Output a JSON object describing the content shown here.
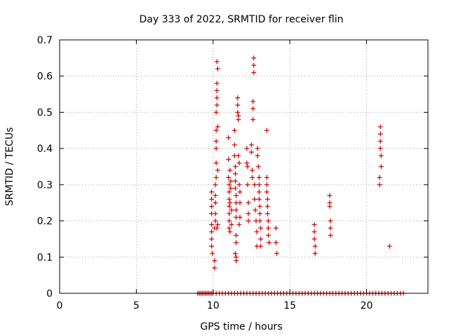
{
  "chart_data": {
    "type": "scatter",
    "title": "Day 333 of 2022, SRMTID for receiver flin",
    "xlabel": "GPS time / hours",
    "ylabel": "SRMTID / TECUs",
    "xlim": [
      0,
      24
    ],
    "ylim": [
      0,
      0.7
    ],
    "xticks": [
      "0",
      "5",
      "10",
      "15",
      "20"
    ],
    "xtick_values": [
      0,
      5,
      10,
      15,
      20
    ],
    "yticks": [
      "0",
      "0.1",
      "0.2",
      "0.3",
      "0.4",
      "0.5",
      "0.6",
      "0.7"
    ],
    "ytick_values": [
      0,
      0.1,
      0.2,
      0.3,
      0.4,
      0.5,
      0.6,
      0.7
    ],
    "grid": true,
    "marker": "+",
    "color": "#cc0000",
    "series": [
      {
        "name": "SRMTID",
        "points": [
          [
            9.9,
            0.28
          ],
          [
            9.9,
            0.26
          ],
          [
            9.9,
            0.24
          ],
          [
            9.9,
            0.22
          ],
          [
            9.9,
            0.19
          ],
          [
            9.9,
            0.17
          ],
          [
            9.9,
            0.15
          ],
          [
            9.9,
            0.13
          ],
          [
            9.95,
            0.11
          ],
          [
            10.1,
            0.07
          ],
          [
            10.1,
            0.09
          ],
          [
            10.1,
            0.18
          ],
          [
            10.15,
            0.2
          ],
          [
            10.15,
            0.22
          ],
          [
            10.15,
            0.25
          ],
          [
            10.15,
            0.27
          ],
          [
            10.15,
            0.3
          ],
          [
            10.2,
            0.32
          ],
          [
            10.2,
            0.36
          ],
          [
            10.2,
            0.4
          ],
          [
            10.2,
            0.42
          ],
          [
            10.2,
            0.45
          ],
          [
            10.2,
            0.5
          ],
          [
            10.25,
            0.52
          ],
          [
            10.25,
            0.54
          ],
          [
            10.25,
            0.56
          ],
          [
            10.25,
            0.58
          ],
          [
            10.25,
            0.64
          ],
          [
            10.3,
            0.62
          ],
          [
            10.3,
            0.46
          ],
          [
            10.3,
            0.34
          ],
          [
            10.3,
            0.19
          ],
          [
            10.25,
            0.18
          ],
          [
            11.0,
            0.43
          ],
          [
            11.0,
            0.37
          ],
          [
            11.0,
            0.32
          ],
          [
            11.05,
            0.3
          ],
          [
            11.05,
            0.28
          ],
          [
            11.05,
            0.26
          ],
          [
            11.05,
            0.24
          ],
          [
            11.05,
            0.22
          ],
          [
            11.05,
            0.2
          ],
          [
            11.05,
            0.18
          ],
          [
            11.1,
            0.17
          ],
          [
            11.1,
            0.34
          ],
          [
            11.1,
            0.25
          ],
          [
            11.15,
            0.29
          ],
          [
            11.15,
            0.31
          ],
          [
            11.2,
            0.23
          ],
          [
            11.2,
            0.19
          ],
          [
            11.4,
            0.45
          ],
          [
            11.4,
            0.41
          ],
          [
            11.4,
            0.38
          ],
          [
            11.45,
            0.35
          ],
          [
            11.45,
            0.33
          ],
          [
            11.45,
            0.31
          ],
          [
            11.45,
            0.29
          ],
          [
            11.5,
            0.27
          ],
          [
            11.5,
            0.25
          ],
          [
            11.5,
            0.23
          ],
          [
            11.5,
            0.21
          ],
          [
            11.5,
            0.16
          ],
          [
            11.5,
            0.14
          ],
          [
            11.45,
            0.11
          ],
          [
            11.5,
            0.1
          ],
          [
            11.5,
            0.09
          ],
          [
            11.6,
            0.54
          ],
          [
            11.6,
            0.52
          ],
          [
            11.6,
            0.5
          ],
          [
            11.65,
            0.49
          ],
          [
            11.65,
            0.48
          ],
          [
            11.65,
            0.38
          ],
          [
            11.7,
            0.36
          ],
          [
            11.7,
            0.3
          ],
          [
            11.75,
            0.28
          ],
          [
            11.75,
            0.25
          ],
          [
            11.75,
            0.21
          ],
          [
            11.7,
            0.19
          ],
          [
            12.2,
            0.4
          ],
          [
            12.2,
            0.36
          ],
          [
            12.25,
            0.35
          ],
          [
            12.25,
            0.3
          ],
          [
            12.3,
            0.25
          ],
          [
            12.3,
            0.22
          ],
          [
            12.3,
            0.2
          ],
          [
            12.5,
            0.41
          ],
          [
            12.5,
            0.39
          ],
          [
            12.55,
            0.34
          ],
          [
            12.55,
            0.32
          ],
          [
            12.6,
            0.53
          ],
          [
            12.6,
            0.51
          ],
          [
            12.6,
            0.48
          ],
          [
            12.65,
            0.61
          ],
          [
            12.65,
            0.63
          ],
          [
            12.65,
            0.65
          ],
          [
            12.7,
            0.3
          ],
          [
            12.7,
            0.26
          ],
          [
            12.75,
            0.23
          ],
          [
            12.8,
            0.2
          ],
          [
            12.85,
            0.17
          ],
          [
            12.85,
            0.13
          ],
          [
            12.9,
            0.4
          ],
          [
            12.9,
            0.38
          ],
          [
            12.95,
            0.35
          ],
          [
            13.0,
            0.32
          ],
          [
            13.0,
            0.3
          ],
          [
            13.0,
            0.28
          ],
          [
            13.0,
            0.26
          ],
          [
            13.05,
            0.24
          ],
          [
            13.05,
            0.22
          ],
          [
            13.05,
            0.2
          ],
          [
            13.1,
            0.18
          ],
          [
            13.1,
            0.15
          ],
          [
            13.1,
            0.13
          ],
          [
            13.5,
            0.45
          ],
          [
            13.5,
            0.32
          ],
          [
            13.5,
            0.3
          ],
          [
            13.5,
            0.28
          ],
          [
            13.55,
            0.26
          ],
          [
            13.55,
            0.24
          ],
          [
            13.55,
            0.22
          ],
          [
            13.6,
            0.2
          ],
          [
            13.6,
            0.18
          ],
          [
            13.6,
            0.16
          ],
          [
            13.65,
            0.14
          ],
          [
            14.1,
            0.18
          ],
          [
            14.1,
            0.14
          ],
          [
            14.15,
            0.11
          ],
          [
            16.6,
            0.19
          ],
          [
            16.6,
            0.17
          ],
          [
            16.6,
            0.15
          ],
          [
            16.65,
            0.13
          ],
          [
            16.65,
            0.11
          ],
          [
            17.6,
            0.27
          ],
          [
            17.6,
            0.25
          ],
          [
            17.6,
            0.24
          ],
          [
            17.65,
            0.2
          ],
          [
            17.65,
            0.18
          ],
          [
            17.65,
            0.16
          ],
          [
            20.9,
            0.46
          ],
          [
            20.9,
            0.44
          ],
          [
            20.9,
            0.42
          ],
          [
            20.9,
            0.4
          ],
          [
            20.95,
            0.38
          ],
          [
            20.95,
            0.35
          ],
          [
            20.85,
            0.32
          ],
          [
            20.85,
            0.3
          ],
          [
            21.5,
            0.13
          ]
        ]
      },
      {
        "name": "SRMTID zero level",
        "x_range": [
          9.0,
          22.5
        ],
        "y": 0,
        "points": [
          [
            9.0,
            0
          ],
          [
            9.1,
            0
          ],
          [
            9.2,
            0
          ],
          [
            9.3,
            0
          ],
          [
            9.4,
            0
          ],
          [
            9.5,
            0
          ],
          [
            9.6,
            0
          ],
          [
            9.7,
            0
          ],
          [
            9.8,
            0
          ],
          [
            9.9,
            0
          ],
          [
            10.0,
            0
          ],
          [
            10.2,
            0
          ],
          [
            10.4,
            0
          ],
          [
            10.6,
            0
          ],
          [
            10.8,
            0
          ],
          [
            11.0,
            0
          ],
          [
            11.2,
            0
          ],
          [
            11.4,
            0
          ],
          [
            11.6,
            0
          ],
          [
            11.8,
            0
          ],
          [
            12.0,
            0
          ],
          [
            12.2,
            0
          ],
          [
            12.4,
            0
          ],
          [
            12.6,
            0
          ],
          [
            12.8,
            0
          ],
          [
            13.0,
            0
          ],
          [
            13.2,
            0
          ],
          [
            13.4,
            0
          ],
          [
            13.6,
            0
          ],
          [
            13.8,
            0
          ],
          [
            14.0,
            0
          ],
          [
            14.2,
            0
          ],
          [
            14.4,
            0
          ],
          [
            14.6,
            0
          ],
          [
            14.8,
            0
          ],
          [
            15.0,
            0
          ],
          [
            15.2,
            0
          ],
          [
            15.4,
            0
          ],
          [
            15.6,
            0
          ],
          [
            15.8,
            0
          ],
          [
            16.0,
            0
          ],
          [
            16.2,
            0
          ],
          [
            16.4,
            0
          ],
          [
            16.6,
            0
          ],
          [
            16.8,
            0
          ],
          [
            17.0,
            0
          ],
          [
            17.2,
            0
          ],
          [
            17.4,
            0
          ],
          [
            17.6,
            0
          ],
          [
            17.8,
            0
          ],
          [
            18.0,
            0
          ],
          [
            18.2,
            0
          ],
          [
            18.4,
            0
          ],
          [
            18.6,
            0
          ],
          [
            18.8,
            0
          ],
          [
            19.0,
            0
          ],
          [
            19.2,
            0
          ],
          [
            19.4,
            0
          ],
          [
            19.6,
            0
          ],
          [
            19.8,
            0
          ],
          [
            20.0,
            0
          ],
          [
            20.2,
            0
          ],
          [
            20.4,
            0
          ],
          [
            20.6,
            0
          ],
          [
            20.8,
            0
          ],
          [
            21.0,
            0
          ],
          [
            21.2,
            0
          ],
          [
            21.4,
            0
          ],
          [
            21.6,
            0
          ],
          [
            21.8,
            0
          ],
          [
            22.0,
            0
          ],
          [
            22.2,
            0
          ],
          [
            22.4,
            0
          ]
        ]
      }
    ]
  }
}
